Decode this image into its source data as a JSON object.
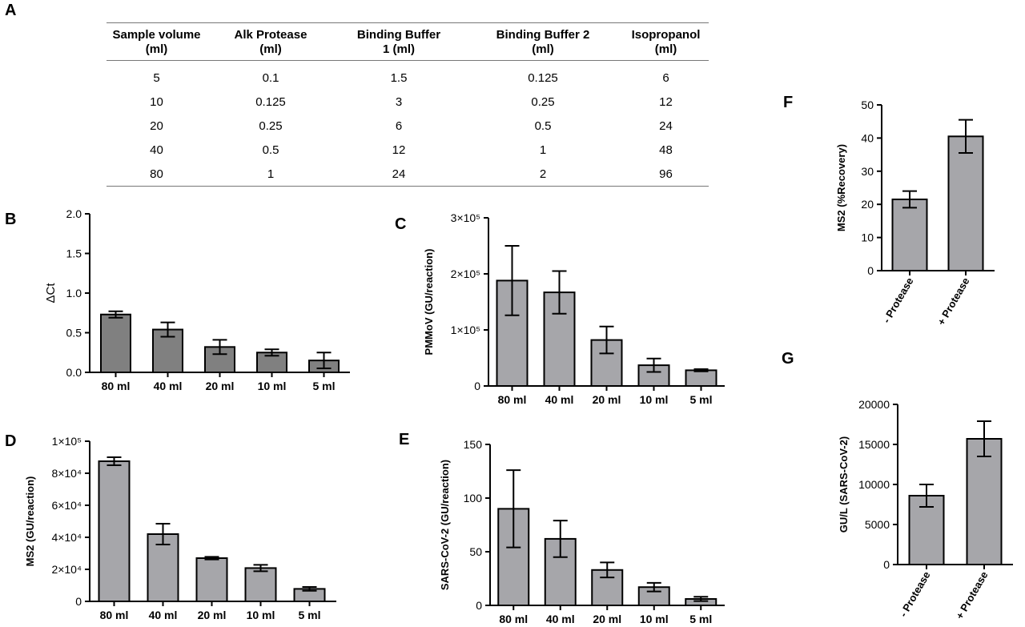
{
  "panel_labels": {
    "a": "A",
    "b": "B",
    "c": "C",
    "d": "D",
    "e": "E",
    "f": "F",
    "g": "G"
  },
  "table": {
    "headers": [
      "Sample volume\n(ml)",
      "Alk Protease\n(ml)",
      "Binding Buffer\n1 (ml)",
      "Binding Buffer 2\n(ml)",
      "Isopropanol\n(ml)"
    ],
    "rows": [
      [
        "5",
        "0.1",
        "1.5",
        "0.125",
        "6"
      ],
      [
        "10",
        "0.125",
        "3",
        "0.25",
        "12"
      ],
      [
        "20",
        "0.25",
        "6",
        "0.5",
        "24"
      ],
      [
        "40",
        "0.5",
        "12",
        "1",
        "48"
      ],
      [
        "80",
        "1",
        "24",
        "2",
        "96"
      ]
    ]
  },
  "colors": {
    "bar_dark": "#808080",
    "bar_light": "#a6a6aa",
    "axis": "#000000"
  },
  "chart_data": [
    {
      "id": "B",
      "type": "bar",
      "title": "",
      "categories": [
        "80 ml",
        "40 ml",
        "20 ml",
        "10 ml",
        "5 ml"
      ],
      "values": [
        0.73,
        0.54,
        0.32,
        0.25,
        0.15
      ],
      "errors": [
        0.04,
        0.09,
        0.09,
        0.04,
        0.1
      ],
      "ylabel": "ΔCt",
      "ylim": [
        0,
        2.0
      ],
      "yticks": [
        0,
        0.5,
        1.0,
        1.5,
        2.0
      ],
      "ytick_labels": [
        "0.0",
        "0.5",
        "1.0",
        "1.5",
        "2.0"
      ]
    },
    {
      "id": "C",
      "type": "bar",
      "title": "",
      "categories": [
        "80 ml",
        "40 ml",
        "20 ml",
        "10 ml",
        "5 ml"
      ],
      "values": [
        188000,
        167000,
        82000,
        37000,
        28000
      ],
      "errors": [
        62000,
        38000,
        24000,
        12000,
        2000
      ],
      "ylabel": "PMMoV (GU/reaction)",
      "ylim": [
        0,
        300000
      ],
      "yticks": [
        0,
        100000,
        200000,
        300000
      ],
      "ytick_labels": [
        "0",
        "1×10⁵",
        "2×10⁵",
        "3×10⁵"
      ]
    },
    {
      "id": "D",
      "type": "bar",
      "title": "",
      "categories": [
        "80 ml",
        "40 ml",
        "20 ml",
        "10 ml",
        "5 ml"
      ],
      "values": [
        87500,
        42000,
        27000,
        20800,
        7800
      ],
      "errors": [
        2500,
        6500,
        800,
        2000,
        1200
      ],
      "ylabel": "MS2 (GU/reaction)",
      "ylim": [
        0,
        100000
      ],
      "yticks": [
        0,
        20000,
        40000,
        60000,
        80000,
        100000
      ],
      "ytick_labels": [
        "0",
        "2×10⁴",
        "4×10⁴",
        "6×10⁴",
        "8×10⁴",
        "1×10⁵"
      ]
    },
    {
      "id": "E",
      "type": "bar",
      "title": "",
      "categories": [
        "80 ml",
        "40 ml",
        "20 ml",
        "10 ml",
        "5 ml"
      ],
      "values": [
        90,
        62,
        33,
        17,
        6
      ],
      "errors": [
        36,
        17,
        7,
        4,
        2
      ],
      "ylabel": "SARS-CoV-2 (GU/reaction)",
      "ylim": [
        0,
        150
      ],
      "yticks": [
        0,
        50,
        100,
        150
      ],
      "ytick_labels": [
        "0",
        "50",
        "100",
        "150"
      ]
    },
    {
      "id": "F",
      "type": "bar",
      "title": "",
      "categories": [
        "- Protease",
        "+ Protease"
      ],
      "values": [
        21.5,
        40.5
      ],
      "errors": [
        2.5,
        5
      ],
      "ylabel": "MS2 (%Recovery)",
      "ylim": [
        0,
        50
      ],
      "yticks": [
        0,
        10,
        20,
        30,
        40,
        50
      ],
      "ytick_labels": [
        "0",
        "10",
        "20",
        "30",
        "40",
        "50"
      ]
    },
    {
      "id": "G",
      "type": "bar",
      "title": "",
      "categories": [
        "- Protease",
        "+ Protease"
      ],
      "values": [
        8600,
        15700
      ],
      "errors": [
        1400,
        2200
      ],
      "ylabel": "GU/L  (SARS-CoV-2)",
      "ylim": [
        0,
        20000
      ],
      "yticks": [
        0,
        5000,
        10000,
        15000,
        20000
      ],
      "ytick_labels": [
        "0",
        "5000",
        "10000",
        "15000",
        "20000"
      ]
    }
  ]
}
